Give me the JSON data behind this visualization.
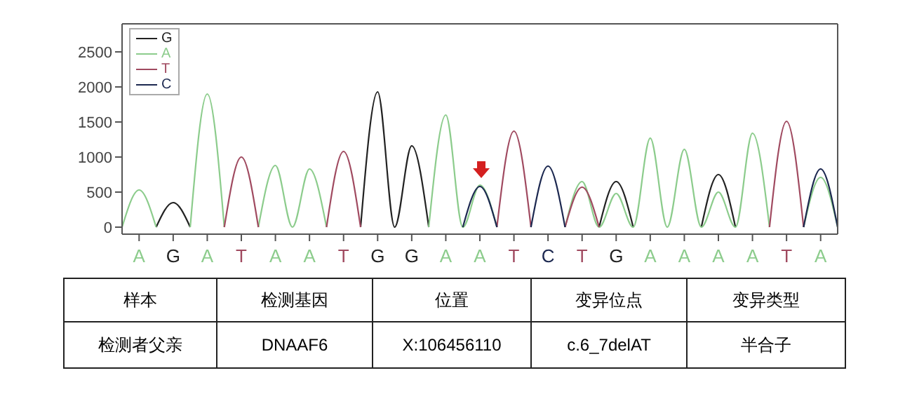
{
  "chart_data": {
    "type": "line",
    "legend": "top left",
    "marker": "none",
    "line_style": "solid",
    "ylim": [
      -100,
      2900
    ],
    "yticks": [
      0,
      500,
      1000,
      1500,
      2000,
      2500
    ],
    "categories": [
      null,
      "A",
      null,
      "G",
      null,
      "A",
      null,
      "T",
      null,
      "A",
      null,
      "A",
      null,
      "T",
      null,
      "G",
      null,
      "G",
      null,
      "A",
      null,
      "A",
      null,
      "T",
      null,
      "C",
      null,
      "T",
      null,
      "G",
      null,
      "A",
      null,
      "A",
      null,
      "A",
      null,
      "A",
      null,
      "T",
      null,
      "A",
      null
    ],
    "series": [
      {
        "name": "G",
        "color": "#222222",
        "values": [
          null,
          null,
          0,
          350,
          0,
          null,
          null,
          null,
          null,
          null,
          null,
          null,
          null,
          null,
          0,
          1930,
          0,
          1160,
          0,
          null,
          null,
          null,
          null,
          null,
          null,
          null,
          null,
          null,
          0,
          650,
          0,
          null,
          null,
          null,
          0,
          750,
          0,
          null,
          null,
          null,
          null,
          null,
          null
        ]
      },
      {
        "name": "A",
        "color": "#8ccc8c",
        "values": [
          0,
          530,
          0,
          null,
          0,
          1900,
          0,
          null,
          0,
          880,
          0,
          830,
          0,
          null,
          null,
          null,
          null,
          null,
          0,
          1600,
          0,
          600,
          0,
          null,
          null,
          null,
          0,
          650,
          0,
          480,
          0,
          1270,
          0,
          1110,
          0,
          500,
          0,
          1340,
          0,
          null,
          0,
          710,
          0
        ]
      },
      {
        "name": "T",
        "color": "#a04a60",
        "values": [
          null,
          null,
          null,
          null,
          null,
          null,
          0,
          1000,
          0,
          null,
          null,
          null,
          0,
          1080,
          0,
          null,
          null,
          null,
          null,
          null,
          null,
          null,
          0,
          1370,
          0,
          null,
          0,
          570,
          0,
          null,
          null,
          null,
          null,
          null,
          null,
          null,
          null,
          null,
          0,
          1510,
          0,
          null,
          null
        ]
      },
      {
        "name": "C",
        "color": "#1c2850",
        "values": [
          null,
          null,
          null,
          null,
          null,
          null,
          null,
          null,
          null,
          null,
          null,
          null,
          null,
          null,
          null,
          null,
          null,
          null,
          null,
          null,
          0,
          580,
          0,
          null,
          0,
          870,
          0,
          null,
          null,
          null,
          null,
          null,
          null,
          null,
          null,
          null,
          null,
          null,
          null,
          null,
          0,
          830,
          0
        ]
      }
    ],
    "annotations": [
      "样本",
      "检测基因",
      "位置",
      "变异位点",
      "变异类型",
      "检测者父亲",
      "DNAAF6",
      "X:106456110",
      "c.6_7delAT",
      "半合子"
    ]
  }
}
